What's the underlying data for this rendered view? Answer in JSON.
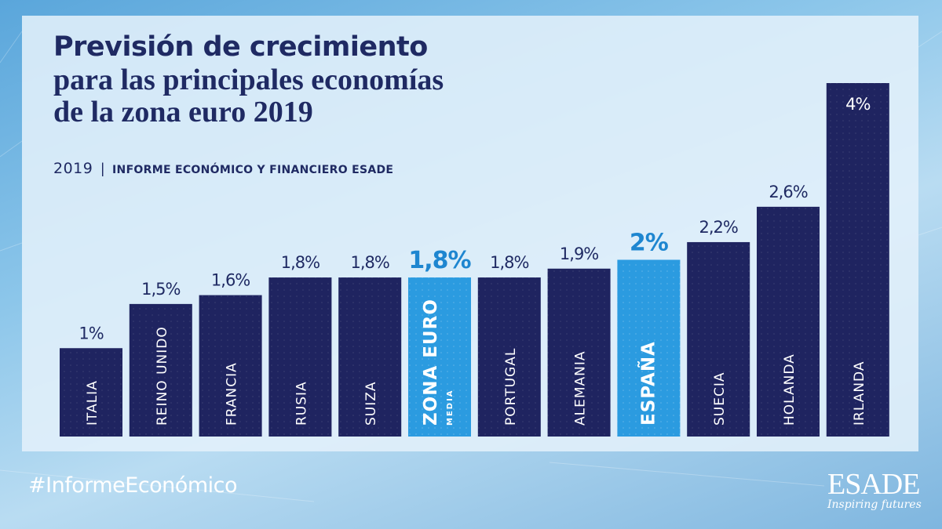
{
  "title": {
    "line1": "Previsión de crecimiento",
    "line2": "para las principales economías",
    "line3": "de la zona euro 2019"
  },
  "subtitle": {
    "year": "2019",
    "separator": "|",
    "source": "INFORME ECONÓMICO Y FINANCIERO ESADE"
  },
  "hashtag": "#InformeEconómico",
  "logo": {
    "name": "ESADE",
    "tagline": "Inspiring futures"
  },
  "colors": {
    "bar": "#1f2460",
    "highlight": "#2b9be0",
    "label_dark": "#1f2a63",
    "label_highlight": "#1e86d0",
    "bar_text": "#ffffff"
  },
  "chart_data": {
    "type": "bar",
    "title": "Previsión de crecimiento para las principales economías de la zona euro 2019",
    "unit": "%",
    "ylim": [
      0,
      4
    ],
    "grid": false,
    "categories": [
      "ITALIA",
      "REINO UNIDO",
      "FRANCIA",
      "RUSIA",
      "SUIZA",
      "ZONA EURO",
      "PORTUGAL",
      "ALEMANIA",
      "ESPAÑA",
      "SUECIA",
      "HOLANDA",
      "IRLANDA"
    ],
    "sublabels": [
      "",
      "",
      "",
      "",
      "",
      "MEDIA",
      "",
      "",
      "",
      "",
      "",
      ""
    ],
    "values": [
      1,
      1.5,
      1.6,
      1.8,
      1.8,
      1.8,
      1.8,
      1.9,
      2,
      2.2,
      2.6,
      4
    ],
    "value_labels": [
      "1%",
      "1,5%",
      "1,6%",
      "1,8%",
      "1,8%",
      "1,8%",
      "1,8%",
      "1,9%",
      "2%",
      "2,2%",
      "2,6%",
      "4%"
    ],
    "highlighted": [
      false,
      false,
      false,
      false,
      false,
      true,
      false,
      false,
      true,
      false,
      false,
      false
    ]
  }
}
